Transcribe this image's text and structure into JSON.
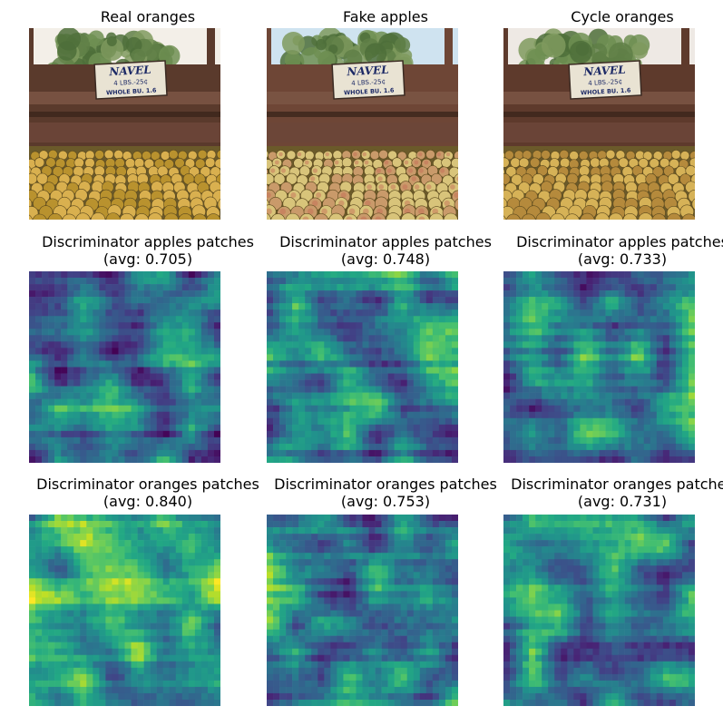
{
  "figure": {
    "rows": [
      {
        "id": "row-images",
        "panels": [
          {
            "title_line1": "Real oranges",
            "title_line2": "",
            "kind": "photo",
            "variant": "real"
          },
          {
            "title_line1": "Fake apples",
            "title_line2": "",
            "kind": "photo",
            "variant": "fake"
          },
          {
            "title_line1": "Cycle oranges",
            "title_line2": "",
            "kind": "photo",
            "variant": "cycle"
          }
        ]
      },
      {
        "id": "row-disc-apples",
        "panels": [
          {
            "title_line1": "Discriminator apples patches",
            "title_line2": "(avg: 0.705)",
            "kind": "heatmap",
            "avg": 0.705
          },
          {
            "title_line1": "Discriminator apples patches",
            "title_line2": "(avg: 0.748)",
            "kind": "heatmap",
            "avg": 0.748
          },
          {
            "title_line1": "Discriminator apples patches",
            "title_line2": "(avg: 0.733)",
            "kind": "heatmap",
            "avg": 0.733
          }
        ]
      },
      {
        "id": "row-disc-oranges",
        "panels": [
          {
            "title_line1": "Discriminator oranges patches",
            "title_line2": "(avg: 0.840)",
            "kind": "heatmap",
            "avg": 0.84
          },
          {
            "title_line1": "Discriminator oranges patches",
            "title_line2": "(avg: 0.753)",
            "kind": "heatmap",
            "avg": 0.753
          },
          {
            "title_line1": "Discriminator oranges patches",
            "title_line2": "(avg: 0.731)",
            "kind": "heatmap",
            "avg": 0.731
          }
        ]
      }
    ],
    "photo_sign": {
      "line1": "NAVEL",
      "line2": "4 LBS.-25¢",
      "line3": "WHOLE BU. 1.6"
    },
    "colormap": "viridis"
  }
}
